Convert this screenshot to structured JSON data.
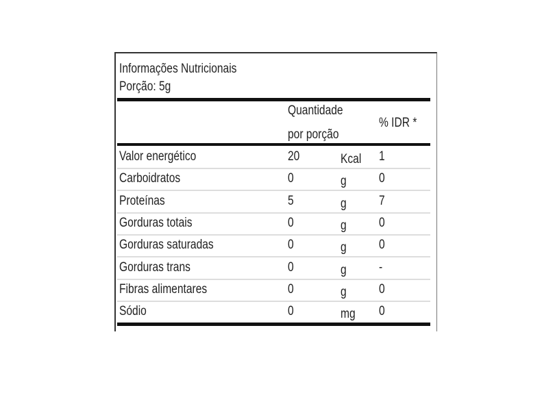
{
  "label": {
    "title": "Informações Nutricionais",
    "portion": "Porção: 5g",
    "headers": {
      "quantity_line1": "Quantidade",
      "quantity_line2": "por porção",
      "idr": "% IDR *"
    },
    "rows": [
      {
        "name": "Valor energético",
        "qty": "20",
        "unit": "Kcal",
        "idr": "1"
      },
      {
        "name": "Carboidratos",
        "qty": "0",
        "unit": "g",
        "idr": "0"
      },
      {
        "name": "Proteínas",
        "qty": "5",
        "unit": "g",
        "idr": "7"
      },
      {
        "name": "Gorduras totais",
        "qty": "0",
        "unit": "g",
        "idr": "0"
      },
      {
        "name": "Gorduras saturadas",
        "qty": "0",
        "unit": "g",
        "idr": "0"
      },
      {
        "name": "Gorduras trans",
        "qty": "0",
        "unit": "g",
        "idr": "-"
      },
      {
        "name": "Fibras alimentares",
        "qty": "0",
        "unit": "g",
        "idr": "0"
      },
      {
        "name": "Sódio",
        "qty": "0",
        "unit": "mg",
        "idr": "0"
      }
    ]
  }
}
